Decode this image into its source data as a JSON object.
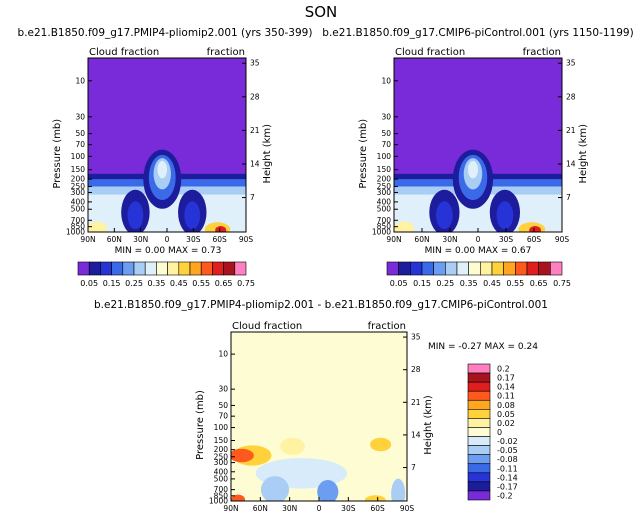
{
  "page_title": "SON",
  "colors": {
    "above": "#7a2bd9",
    "contour_levels": [
      "#7a2bd9",
      "#1c1c9c",
      "#2633d6",
      "#3b6ae8",
      "#6b9ef0",
      "#a9cdf5",
      "#dff0fa",
      "#fefcd2",
      "#fff2a0",
      "#ffd23c",
      "#ffa520",
      "#ff5a1e",
      "#e01e1e",
      "#a8141e",
      "#ff80c0"
    ],
    "diff_levels": [
      "#7a2bd9",
      "#1c1c9c",
      "#2633d6",
      "#3b6ae8",
      "#6b9ef0",
      "#a9cdf5",
      "#d7ebfa",
      "#fefcd2",
      "#fff2a0",
      "#ffd23c",
      "#ffa520",
      "#ff5a1e",
      "#e01e1e",
      "#a8141e",
      "#ff80c0"
    ]
  },
  "chart_data": [
    {
      "type": "heatmap",
      "title": "b.e21.B1850.f09_g17.PMIP4-pliomip2.001 (yrs 350-399)",
      "top_left_label": "Cloud fraction",
      "top_right_label": "fraction",
      "ylabel": "Pressure (mb)",
      "ylabel_right": "Height (km)",
      "x_ticks": [
        "90N",
        "60N",
        "30N",
        "0",
        "30S",
        "60S",
        "90S"
      ],
      "y_ticks": [
        "10",
        "30",
        "50",
        "70",
        "100",
        "150",
        "200",
        "250",
        "300",
        "400",
        "500",
        "700",
        "850",
        "1000"
      ],
      "y_right_ticks": [
        "35",
        "28",
        "21",
        "14",
        "7"
      ],
      "min_label": "MIN =",
      "min": "0.00",
      "max_label": "MAX =",
      "max": "0.73",
      "colorbar_labels": [
        "0.05",
        "0.15",
        "0.25",
        "0.35",
        "0.45",
        "0.55",
        "0.65",
        "0.75"
      ]
    },
    {
      "type": "heatmap",
      "title": "b.e21.B1850.f09_g17.CMIP6-piControl.001 (yrs 1150-1199)",
      "top_left_label": "Cloud fraction",
      "top_right_label": "fraction",
      "ylabel": "Pressure (mb)",
      "ylabel_right": "Height (km)",
      "x_ticks": [
        "90N",
        "60N",
        "30N",
        "0",
        "30S",
        "60S",
        "90S"
      ],
      "y_ticks": [
        "10",
        "30",
        "50",
        "70",
        "100",
        "150",
        "200",
        "250",
        "300",
        "400",
        "500",
        "700",
        "850",
        "1000"
      ],
      "y_right_ticks": [
        "35",
        "28",
        "21",
        "14",
        "7"
      ],
      "min_label": "MIN =",
      "min": "0.00",
      "max_label": "MAX =",
      "max": "0.67",
      "colorbar_labels": [
        "0.05",
        "0.15",
        "0.25",
        "0.35",
        "0.45",
        "0.55",
        "0.65",
        "0.75"
      ]
    },
    {
      "type": "heatmap",
      "title": "b.e21.B1850.f09_g17.PMIP4-pliomip2.001 - b.e21.B1850.f09_g17.CMIP6-piControl.001",
      "top_left_label": "Cloud fraction",
      "top_right_label": "fraction",
      "ylabel": "Pressure (mb)",
      "ylabel_right": "Height (km)",
      "x_ticks": [
        "90N",
        "60N",
        "30N",
        "0",
        "30S",
        "60S",
        "90S"
      ],
      "y_ticks": [
        "10",
        "30",
        "50",
        "70",
        "100",
        "150",
        "200",
        "250",
        "300",
        "400",
        "500",
        "700",
        "850",
        "1000"
      ],
      "y_right_ticks": [
        "35",
        "28",
        "21",
        "14",
        "7"
      ],
      "min_label": "MIN =",
      "min": "-0.27",
      "max_label": "MAX =",
      "max": "0.24",
      "colorbar_labels": [
        "0.2",
        "0.17",
        "0.14",
        "0.11",
        "0.08",
        "0.05",
        "0.02",
        "0",
        "-0.02",
        "-0.05",
        "-0.08",
        "-0.11",
        "-0.14",
        "-0.17",
        "-0.2"
      ]
    }
  ]
}
